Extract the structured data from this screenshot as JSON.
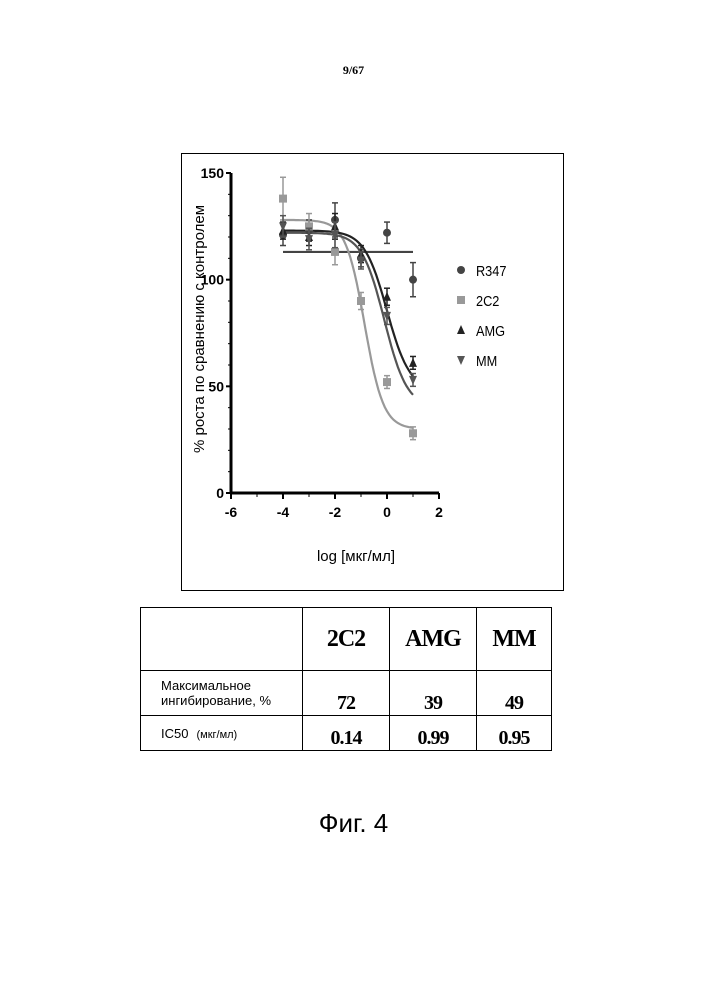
{
  "page_number": "9/67",
  "figure_caption": "Фиг. 4",
  "chart_data": {
    "type": "scatter",
    "xlabel": "log [мкг/мл]",
    "ylabel": "% роста по сравнению с контролем",
    "xlim": [
      -6,
      2
    ],
    "ylim": [
      0,
      150
    ],
    "x_ticks": [
      "-6",
      "-4",
      "-2",
      "0",
      "2"
    ],
    "y_ticks": [
      "0",
      "50",
      "100",
      "150"
    ],
    "legend_position": "right",
    "series": [
      {
        "name": "R347",
        "marker": "circle",
        "color": "#444444",
        "points": [
          {
            "x": -4,
            "y": 121,
            "err": 5
          },
          {
            "x": -3,
            "y": 123,
            "err": 5
          },
          {
            "x": -2,
            "y": 128,
            "err": 8
          },
          {
            "x": -1,
            "y": 110,
            "err": 4
          },
          {
            "x": 0,
            "y": 122,
            "err": 5
          },
          {
            "x": 1,
            "y": 100,
            "err": 8
          }
        ],
        "fit": {
          "kind": "flat",
          "y": 113,
          "x_from": -4,
          "x_to": 1
        }
      },
      {
        "name": "2C2",
        "marker": "square",
        "color": "#999999",
        "points": [
          {
            "x": -4,
            "y": 138,
            "err": 10
          },
          {
            "x": -3,
            "y": 125,
            "err": 6
          },
          {
            "x": -2,
            "y": 113,
            "err": 6
          },
          {
            "x": -1,
            "y": 90,
            "err": 4
          },
          {
            "x": 0,
            "y": 52,
            "err": 3
          },
          {
            "x": 1,
            "y": 28,
            "err": 3
          }
        ],
        "fit": {
          "kind": "sigmoid",
          "top": 128,
          "bottom": 30,
          "logIC50": -0.86,
          "hill": 1.2,
          "x_from": -4,
          "x_to": 1
        }
      },
      {
        "name": "AMG",
        "marker": "triangle-up",
        "color": "#222222",
        "points": [
          {
            "x": -4,
            "y": 123,
            "err": 4
          },
          {
            "x": -3,
            "y": 120,
            "err": 4
          },
          {
            "x": -2,
            "y": 125,
            "err": 6
          },
          {
            "x": -1,
            "y": 112,
            "err": 4
          },
          {
            "x": 0,
            "y": 92,
            "err": 4
          },
          {
            "x": 1,
            "y": 61,
            "err": 3
          }
        ],
        "fit": {
          "kind": "sigmoid",
          "top": 123,
          "bottom": 48,
          "logIC50": 0.0,
          "hill": 1.0,
          "x_from": -4,
          "x_to": 1
        }
      },
      {
        "name": "MM",
        "marker": "triangle-down",
        "color": "#555555",
        "points": [
          {
            "x": -4,
            "y": 125,
            "err": 5
          },
          {
            "x": -3,
            "y": 119,
            "err": 5
          },
          {
            "x": -2,
            "y": 121,
            "err": 6
          },
          {
            "x": -1,
            "y": 109,
            "err": 4
          },
          {
            "x": 0,
            "y": 83,
            "err": 4
          },
          {
            "x": 1,
            "y": 53,
            "err": 3
          }
        ],
        "fit": {
          "kind": "sigmoid",
          "top": 122,
          "bottom": 40,
          "logIC50": -0.1,
          "hill": 1.0,
          "x_from": -4,
          "x_to": 1
        }
      }
    ]
  },
  "table": {
    "headers": [
      "",
      "2C2",
      "AMG",
      "MM"
    ],
    "rows": [
      {
        "label": "Максимальное ингибирование, %",
        "label_unit": "",
        "values": [
          "72",
          "39",
          "49"
        ]
      },
      {
        "label": "IC50",
        "label_unit": "(мкг/мл)",
        "values": [
          "0.14",
          "0.99",
          "0.95"
        ]
      }
    ]
  }
}
